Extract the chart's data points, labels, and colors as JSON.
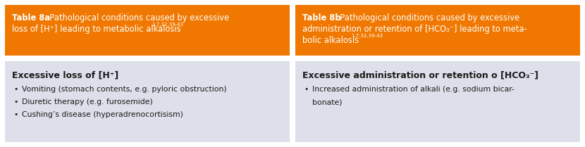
{
  "bg_color": "#ffffff",
  "panel_bg": "#dde0ea",
  "header_bg": "#F07800",
  "header_text_color": "#ffffff",
  "body_text_color": "#1a1a1a",
  "figsize": [
    8.3,
    2.09
  ],
  "dpi": 100,
  "left_header_line1_bold": "Table 8a",
  "left_header_line1_rest": ". Pathological conditions caused by excessive",
  "left_header_line2": "loss of [H⁺] leading to metabolic alkalosis",
  "left_header_super": "1,7,32,39-43",
  "left_subheader": "Excessive loss of [H⁺]",
  "left_bullets": [
    "Vomiting (stomach contents, e.g. pyloric obstruction)",
    "Diuretic therapy (e.g. furosemide)",
    "Cushing’s disease (hyperadrenocortisism)"
  ],
  "right_header_line1_bold": "Table 8b",
  "right_header_line1_rest": ". Pathological conditions caused by excessive",
  "right_header_line2": "administration or retention of [HCO₃⁻] leading to meta-",
  "right_header_line3": "bolic alkalosis",
  "right_header_super": "1,7,32,39-43",
  "right_subheader": "Excessive administration or retention o [HCO₃⁻]",
  "right_bullets_line1": "Increased administration of alkali (e.g. sodium bicar-",
  "right_bullets_line2": "bonate)"
}
